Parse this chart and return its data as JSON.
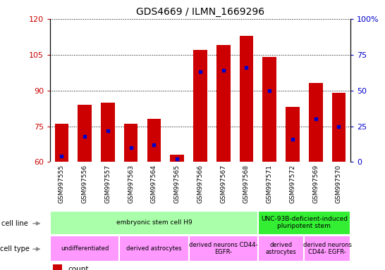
{
  "title": "GDS4669 / ILMN_1669296",
  "samples": [
    "GSM997555",
    "GSM997556",
    "GSM997557",
    "GSM997563",
    "GSM997564",
    "GSM997565",
    "GSM997566",
    "GSM997567",
    "GSM997568",
    "GSM997571",
    "GSM997572",
    "GSM997569",
    "GSM997570"
  ],
  "counts": [
    76,
    84,
    85,
    76,
    78,
    63,
    107,
    109,
    113,
    104,
    83,
    93,
    89
  ],
  "percentiles": [
    4,
    18,
    22,
    10,
    12,
    2,
    63,
    64,
    66,
    50,
    16,
    30,
    25
  ],
  "ymin": 60,
  "ymax": 120,
  "yticks": [
    60,
    75,
    90,
    105,
    120
  ],
  "ytick_labels": [
    "60",
    "75",
    "90",
    "105",
    "120"
  ],
  "right_yticks": [
    0,
    25,
    50,
    75,
    100
  ],
  "right_ytick_labels": [
    "0",
    "25",
    "50",
    "75",
    "100%"
  ],
  "bar_color": "#cc0000",
  "dot_color": "#0000cc",
  "bar_width": 0.6,
  "cell_line_groups": [
    {
      "label": "embryonic stem cell H9",
      "start": 0,
      "end": 9,
      "color": "#aaffaa"
    },
    {
      "label": "UNC-93B-deficient-induced\npluripotent stem",
      "start": 9,
      "end": 13,
      "color": "#33ee33"
    }
  ],
  "cell_type_groups": [
    {
      "label": "undifferentiated",
      "start": 0,
      "end": 3,
      "color": "#ff99ff"
    },
    {
      "label": "derived astrocytes",
      "start": 3,
      "end": 6,
      "color": "#ff99ff"
    },
    {
      "label": "derived neurons CD44-\nEGFR-",
      "start": 6,
      "end": 9,
      "color": "#ff99ff"
    },
    {
      "label": "derived\nastrocytes",
      "start": 9,
      "end": 11,
      "color": "#ff99ff"
    },
    {
      "label": "derived neurons\nCD44- EGFR-",
      "start": 11,
      "end": 13,
      "color": "#ff99ff"
    }
  ],
  "tick_color_left": "#cc0000",
  "tick_color_right": "#0000cc",
  "xtick_bg": "#d0d0d0"
}
